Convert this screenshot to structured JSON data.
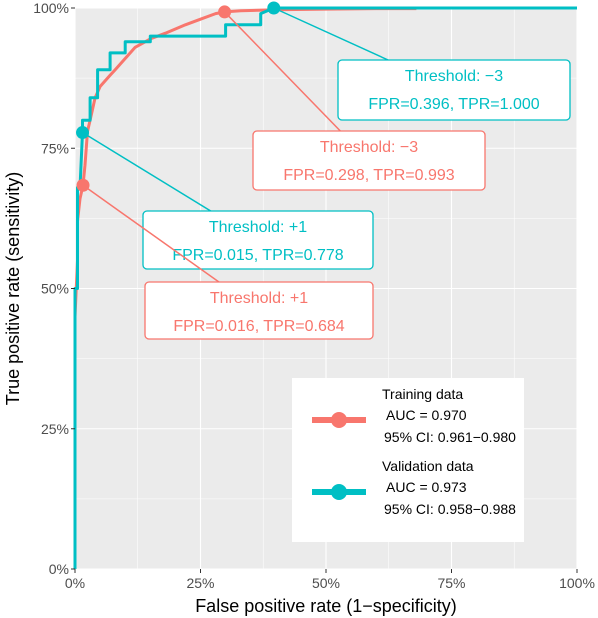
{
  "chart_data": {
    "type": "line",
    "xlabel": "False positive rate (1−specificity)",
    "ylabel": "True positive rate (sensitivity)",
    "xlim": [
      0,
      1
    ],
    "ylim": [
      0,
      1
    ],
    "x_ticks": [
      "0%",
      "25%",
      "50%",
      "75%",
      "100%"
    ],
    "y_ticks": [
      "0%",
      "25%",
      "50%",
      "75%",
      "100%"
    ],
    "grid": true,
    "legend_position": "bottom-right",
    "series": [
      {
        "name": "Training data",
        "color": "#F8766D",
        "auc": "AUC = 0.970",
        "ci": "95% CI: 0.961−0.980",
        "x": [
          0,
          0,
          0.005,
          0.005,
          0.01,
          0.016,
          0.02,
          0.025,
          0.03,
          0.035,
          0.04,
          0.05,
          0.06,
          0.07,
          0.08,
          0.1,
          0.12,
          0.15,
          0.18,
          0.22,
          0.25,
          0.28,
          0.298,
          0.33,
          0.4,
          0.5,
          0.6,
          0.68
        ],
        "y": [
          0,
          0.45,
          0.55,
          0.62,
          0.66,
          0.684,
          0.72,
          0.78,
          0.8,
          0.82,
          0.84,
          0.86,
          0.87,
          0.88,
          0.89,
          0.91,
          0.93,
          0.945,
          0.955,
          0.97,
          0.98,
          0.99,
          0.993,
          0.995,
          0.997,
          0.998,
          0.999,
          0.999
        ]
      },
      {
        "name": "Validation data",
        "color": "#00BFC4",
        "auc": "AUC = 0.973",
        "ci": "95% CI: 0.958−0.988",
        "x": [
          0,
          0,
          0.005,
          0.005,
          0.01,
          0.015,
          0.015,
          0.03,
          0.03,
          0.045,
          0.045,
          0.07,
          0.07,
          0.1,
          0.1,
          0.15,
          0.15,
          0.3,
          0.3,
          0.37,
          0.37,
          0.396,
          0.5,
          0.75,
          1.0
        ],
        "y": [
          0,
          0.5,
          0.5,
          0.68,
          0.68,
          0.778,
          0.8,
          0.8,
          0.84,
          0.84,
          0.89,
          0.89,
          0.92,
          0.92,
          0.94,
          0.94,
          0.95,
          0.95,
          0.97,
          0.97,
          0.99,
          1.0,
          1.0,
          1.0,
          1.0
        ]
      }
    ],
    "annotations": [
      {
        "series": "Validation data",
        "point": [
          0.396,
          1.0
        ],
        "line1": "Threshold: −3",
        "line2": "FPR=0.396, TPR=1.000",
        "color": "#00BFC4"
      },
      {
        "series": "Training data",
        "point": [
          0.298,
          0.993
        ],
        "line1": "Threshold: −3",
        "line2": "FPR=0.298, TPR=0.993",
        "color": "#F8766D"
      },
      {
        "series": "Validation data",
        "point": [
          0.015,
          0.778
        ],
        "line1": "Threshold: +1",
        "line2": "FPR=0.015, TPR=0.778",
        "color": "#00BFC4"
      },
      {
        "series": "Training data",
        "point": [
          0.016,
          0.684
        ],
        "line1": "Threshold: +1",
        "line2": "FPR=0.016, TPR=0.684",
        "color": "#F8766D"
      }
    ]
  }
}
